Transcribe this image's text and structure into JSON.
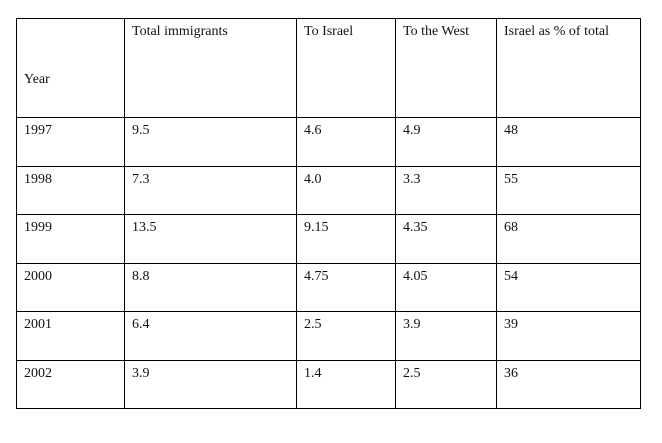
{
  "table": {
    "header": [
      "Year",
      "Total immigrants",
      "To Israel",
      "To the West",
      "Israel as % of total"
    ],
    "rows": [
      [
        "1997",
        "9.5",
        "4.6",
        "4.9",
        "48"
      ],
      [
        "1998",
        "7.3",
        "4.0",
        "3.3",
        "55"
      ],
      [
        "1999",
        "13.5",
        "9.15",
        "4.35",
        "68"
      ],
      [
        "2000",
        "8.8",
        "4.75",
        "4.05",
        "54"
      ],
      [
        "2001",
        "6.4",
        "2.5",
        "3.9",
        "39"
      ],
      [
        "2002",
        "3.9",
        "1.4",
        "2.5",
        "36"
      ]
    ]
  }
}
